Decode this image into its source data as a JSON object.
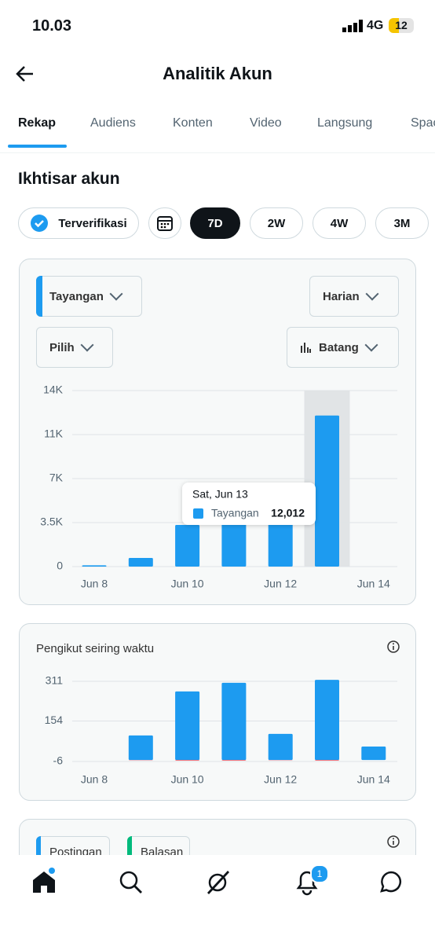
{
  "status_bar": {
    "time": "10.03",
    "network": "4G",
    "battery": "12"
  },
  "header": {
    "title": "Analitik Akun"
  },
  "tabs": [
    "Rekap",
    "Audiens",
    "Konten",
    "Video",
    "Langsung",
    "Spaces"
  ],
  "section": {
    "title": "Ikhtisar akun"
  },
  "chips": {
    "verified": "Terverifikasi",
    "ranges": [
      "7D",
      "2W",
      "4W",
      "3M"
    ]
  },
  "dropdowns": {
    "interval": "Harian",
    "compare": "Pilih",
    "chart_style": "Batang"
  },
  "chart_data": [
    {
      "type": "bar",
      "categories": [
        "Jun 8",
        null,
        "Jun 10",
        null,
        "Jun 12",
        null,
        "Jun 14"
      ],
      "series": [
        {
          "name": "Tayangan",
          "color": "#1d9bf0",
          "values": [
            100,
            690,
            3310,
            3400,
            3400,
            12012,
            0
          ]
        }
      ],
      "ylim": [
        0,
        14000
      ],
      "yticks": [
        0,
        {
          "value": 3500,
          "label": "3.5K"
        },
        {
          "value": 7000,
          "label": "7K"
        },
        {
          "value": 10500,
          "label": "11K"
        },
        {
          "value": 14000,
          "label": "14K"
        }
      ],
      "grid": true,
      "tooltip": {
        "title": "Sat, Jun 13",
        "value": 12012,
        "label": "12,012"
      }
    },
    {
      "type": "bar",
      "title": "Pengikut seiring waktu",
      "categories": [
        "Jun 8",
        null,
        "Jun 10",
        null,
        "Jun 12",
        null,
        "Jun 14"
      ],
      "series": [
        {
          "color": "#1d9bf0",
          "values": [
            0,
            97,
            271,
            305,
            103,
            317,
            53
          ]
        },
        {
          "color": "#f4212e",
          "values": [
            0,
            -1,
            -2,
            -2,
            -1,
            -2,
            0
          ]
        }
      ],
      "ylim": [
        -6,
        311
      ],
      "yticks": [
        -6,
        154,
        311
      ],
      "grid": true
    }
  ],
  "bottom_card": {
    "legend": [
      "Postingan",
      "Balasan"
    ]
  },
  "nav": {
    "badge": "1"
  }
}
